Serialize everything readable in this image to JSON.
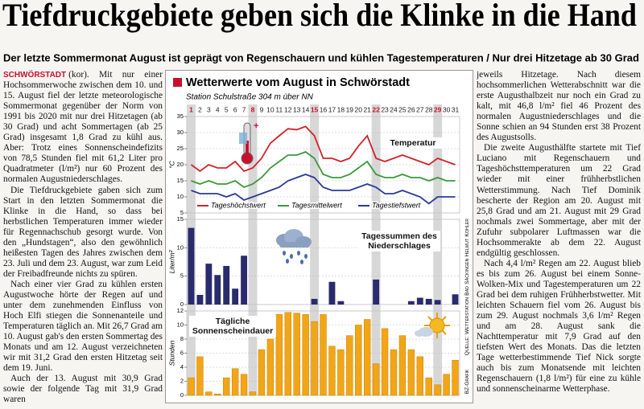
{
  "header": {
    "title": "Tiefdruckgebiete geben sich die Klinke in die Hand",
    "subtitle": "Der letzte Sommermonat August ist geprägt von Regenschauern und kühlen Tagestemperaturen / Nur drei Hitzetage ab 30 Grad"
  },
  "article": {
    "dateline": "SCHWÖRSTADT",
    "left_paragraphs": [
      "(kor). Mit nur einer Hochsommerwoche zwischen dem 10. und 15. August fiel der letzte meteorologische Sommermonat gegenüber der Norm von 1991 bis 2020 mit nur drei Hitzetagen (ab 30 Grad) und acht Sommertagen (ab 25 Grad) insgesamt 1,8 Grad zu kühl aus. Aber: Trotz eines Sonnenscheindefizits von 78,5 Stunden fiel mit 61,2 Liter pro Quadratmeter (l/m²) nur 60 Prozent des normalen Augustniederschlages.",
      "Die Tiefdruckgebiete gaben sich zum Start in den letzten Sommermonat die Klinke in die Hand, so dass bei herbstlichen Temperaturen immer wieder für Regennachschub gesorgt wurde. Von den „Hundstagen“, also den gewöhnlich heißesten Tagen des Jahres zwischen dem 23. Juli und dem 23. August, war zum Leid der Freibadfreunde nichts zu spüren.",
      "Nach einer vier Grad zu kühlen ersten Augustwoche hörte der Regen auf und unter dem zunehmenden Einfluss von Hoch Elfi stiegen die Sonnenanteile und Temperaturen täglich an. Mit 26,7 Grad am 10. August gab's den ersten Sommertag des Monats und am 12. August verzeichneten wir mit 31,2 Grad den ersten Hitzetag seit dem 19. Juni.",
      "Auch der 13. August mit 30,9 Grad sowie der folgende Tag mit 31,9 Grad waren"
    ],
    "right_paragraphs": [
      "jeweils Hitzetage. Nach diesem hochsommerlichen Wetterabschnitt war die erste Augusthalbzeit nur noch ein Grad zu kalt, mit 46,8 l/m² fiel 46 Prozent des normalen Augustniederschlages und die Sonne schien an 94 Stunden erst 38 Prozent des Augustsolls.",
      "Die zweite Augusthälfte startete mit Tief Luciano mit Regenschauern und Tageshöchsttemperaturen um 22 Grad wieder mit einer frühherbstlichen Wetterstimmung. Nach Tief Dominik bescherte der Region am 20. August mit 25,8 Grad und am 21. August mit 29 Grad nochmals zwei Sommertage, aber mit der Zufuhr subpolarer Luftmassen war die Hochsommerakte ab dem 22. August endgültig geschlossen.",
      "Nach 4,4 l/m² Regen am 22. August blieb es bis zum 26. August bei einem Sonne-Wolken-Mix und Tagestemperaturen um 22 Grad bei dem ruhigen Frühherbstwetter. Mit leichten Schauern fiel vom 26. August bis zum 29. August nochmals 3,6 l/m² Regen und am 28. August sank die Nachttemperatur mit 7,9 Grad auf den tiefsten Wert des Monats. Das die letzten Tage wetterbestimmende Tief Nick sorgte auch bis zum Monatsende mit leichten Regenschauern (1,8 l/m²) für eine zu kühle und sonnenscheinarme Wetterphase."
    ]
  },
  "chart_data": {
    "type": "panels",
    "title": "Wetterwerte vom August in Schwörstadt",
    "subtitle": "Station Schulstraße 304 m über NN",
    "source": "Quelle: Wetterstation Bad Säckingen Helmut Kohler",
    "credit": "BZ-Grafik",
    "categories": [
      "1",
      "2",
      "3",
      "4",
      "5",
      "6",
      "7",
      "8",
      "9",
      "10",
      "11",
      "12",
      "13",
      "14",
      "15",
      "16",
      "17",
      "18",
      "19",
      "20",
      "21",
      "22",
      "23",
      "24",
      "25",
      "26",
      "27",
      "28",
      "29",
      "30",
      "31"
    ],
    "highlighted": [
      "1",
      "8",
      "15",
      "22",
      "29"
    ],
    "highlight_color": "#c8102e",
    "highlight_background": "#c9c9c9",
    "panels": [
      {
        "type": "line",
        "label": "Temperatur",
        "y_label": "°C",
        "ylim": [
          5,
          35
        ],
        "yticks": [
          5,
          10,
          15,
          20,
          25,
          30,
          35
        ],
        "grid": true,
        "series": [
          {
            "name": "Tageshöchstwert",
            "color": "#d2232a",
            "values": [
              20,
              18,
              20,
              19,
              19,
              21,
              18,
              19,
              22,
              26.7,
              29,
              31.2,
              30.9,
              31.9,
              29,
              22,
              22,
              21,
              22,
              25.8,
              29,
              22,
              21,
              22,
              23,
              22,
              21,
              20,
              22,
              21,
              20
            ]
          },
          {
            "name": "Tagesmittelwert",
            "color": "#3a9a3a",
            "values": [
              15,
              14,
              15,
              14,
              14,
              15,
              13,
              14,
              16,
              19,
              21,
              23,
              23,
              24,
              22,
              17,
              16,
              16,
              17,
              19,
              21,
              17,
              16,
              16,
              17,
              16,
              16,
              15,
              16,
              15,
              15
            ]
          },
          {
            "name": "Tagestiefstwert",
            "color": "#2b3a9a",
            "values": [
              12,
              11,
              11,
              11,
              10,
              11,
              9,
              10,
              11,
              12,
              13,
              15,
              16,
              17,
              16,
              13,
              12,
              12,
              12,
              13,
              14,
              13,
              11,
              11,
              12,
              11,
              10,
              7.9,
              10,
              10,
              10
            ]
          }
        ]
      },
      {
        "type": "bar",
        "label": "Tagessummen des Niederschlages",
        "y_label": "Liter/m²",
        "ylim": [
          0,
          15
        ],
        "yticks": [
          0,
          5,
          10,
          15
        ],
        "grid": true,
        "color": "#2a2a6e",
        "values": [
          13.5,
          1.7,
          7.2,
          5.2,
          6.8,
          2.8,
          8.6,
          0,
          0,
          0,
          0,
          0,
          0,
          0,
          1.0,
          0,
          4.0,
          0.6,
          0,
          0,
          0,
          4.4,
          0,
          0,
          0,
          0.6,
          1.2,
          1.0,
          0.8,
          0,
          1.8
        ]
      },
      {
        "type": "bar",
        "label": "Tägliche Sonnenscheindauer",
        "y_label": "Stunden",
        "ylim": [
          0,
          12
        ],
        "yticks": [
          0,
          2,
          4,
          6,
          8,
          10,
          12
        ],
        "grid": true,
        "color": "#f2a516",
        "values": [
          2.5,
          5.5,
          0.5,
          0.2,
          2.5,
          3.8,
          3.0,
          0.5,
          6.5,
          8,
          11.5,
          11.8,
          11.7,
          11.5,
          10.5,
          11.5,
          7,
          6.5,
          8.5,
          10,
          10.8,
          4.5,
          9.5,
          6.5,
          8.5,
          6.5,
          5.5,
          2.5,
          1.5,
          3,
          5
        ]
      }
    ]
  }
}
